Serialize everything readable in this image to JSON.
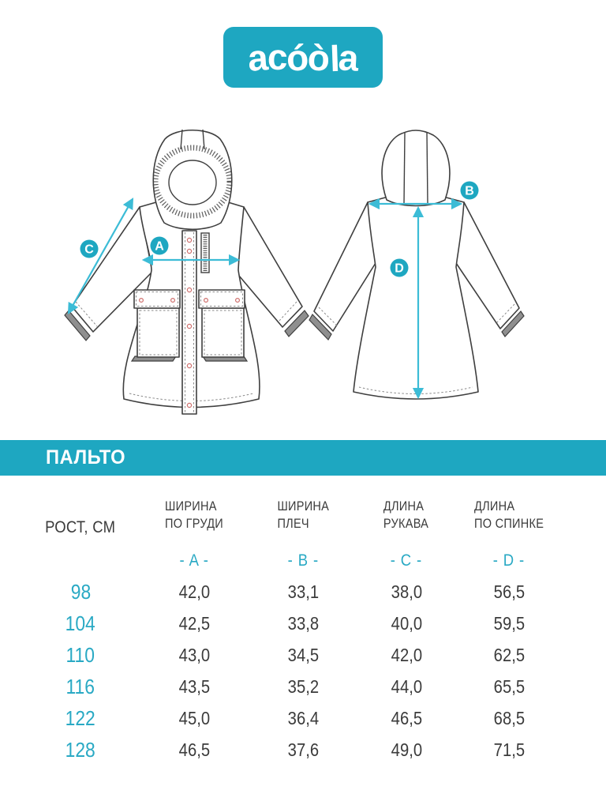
{
  "brand": {
    "logo_text": "acóòla"
  },
  "colors": {
    "teal": "#1ea7c1",
    "arrow": "#3cbcd6",
    "table_accent": "#29a9c4",
    "line_art": "#3f3f3f",
    "stitch_gray": "#8a8a8a",
    "snap_red": "#cf6f6c",
    "text_dark": "#3b3b3b"
  },
  "diagram": {
    "front": {
      "chest_label": "A",
      "sleeve_label": "C"
    },
    "back": {
      "shoulder_label": "B",
      "back_length_label": "D"
    }
  },
  "table": {
    "title": "ПАЛЬТО",
    "row_header": "РОСТ, СМ",
    "columns": [
      {
        "line1": "ШИРИНА",
        "line2": "ПО ГРУДИ",
        "letter": "- A -"
      },
      {
        "line1": "ШИРИНА",
        "line2": "ПЛЕЧ",
        "letter": "- B -"
      },
      {
        "line1": "ДЛИНА",
        "line2": "РУКАВА",
        "letter": "- C -"
      },
      {
        "line1": "ДЛИНА",
        "line2": "ПО СПИНКЕ",
        "letter": "- D -"
      }
    ],
    "rows": [
      {
        "size": "98",
        "values": [
          "42,0",
          "33,1",
          "38,0",
          "56,5"
        ]
      },
      {
        "size": "104",
        "values": [
          "42,5",
          "33,8",
          "40,0",
          "59,5"
        ]
      },
      {
        "size": "110",
        "values": [
          "43,0",
          "34,5",
          "42,0",
          "62,5"
        ]
      },
      {
        "size": "116",
        "values": [
          "43,5",
          "35,2",
          "44,0",
          "65,5"
        ]
      },
      {
        "size": "122",
        "values": [
          "45,0",
          "36,4",
          "46,5",
          "68,5"
        ]
      },
      {
        "size": "128",
        "values": [
          "46,5",
          "37,6",
          "49,0",
          "71,5"
        ]
      }
    ]
  }
}
